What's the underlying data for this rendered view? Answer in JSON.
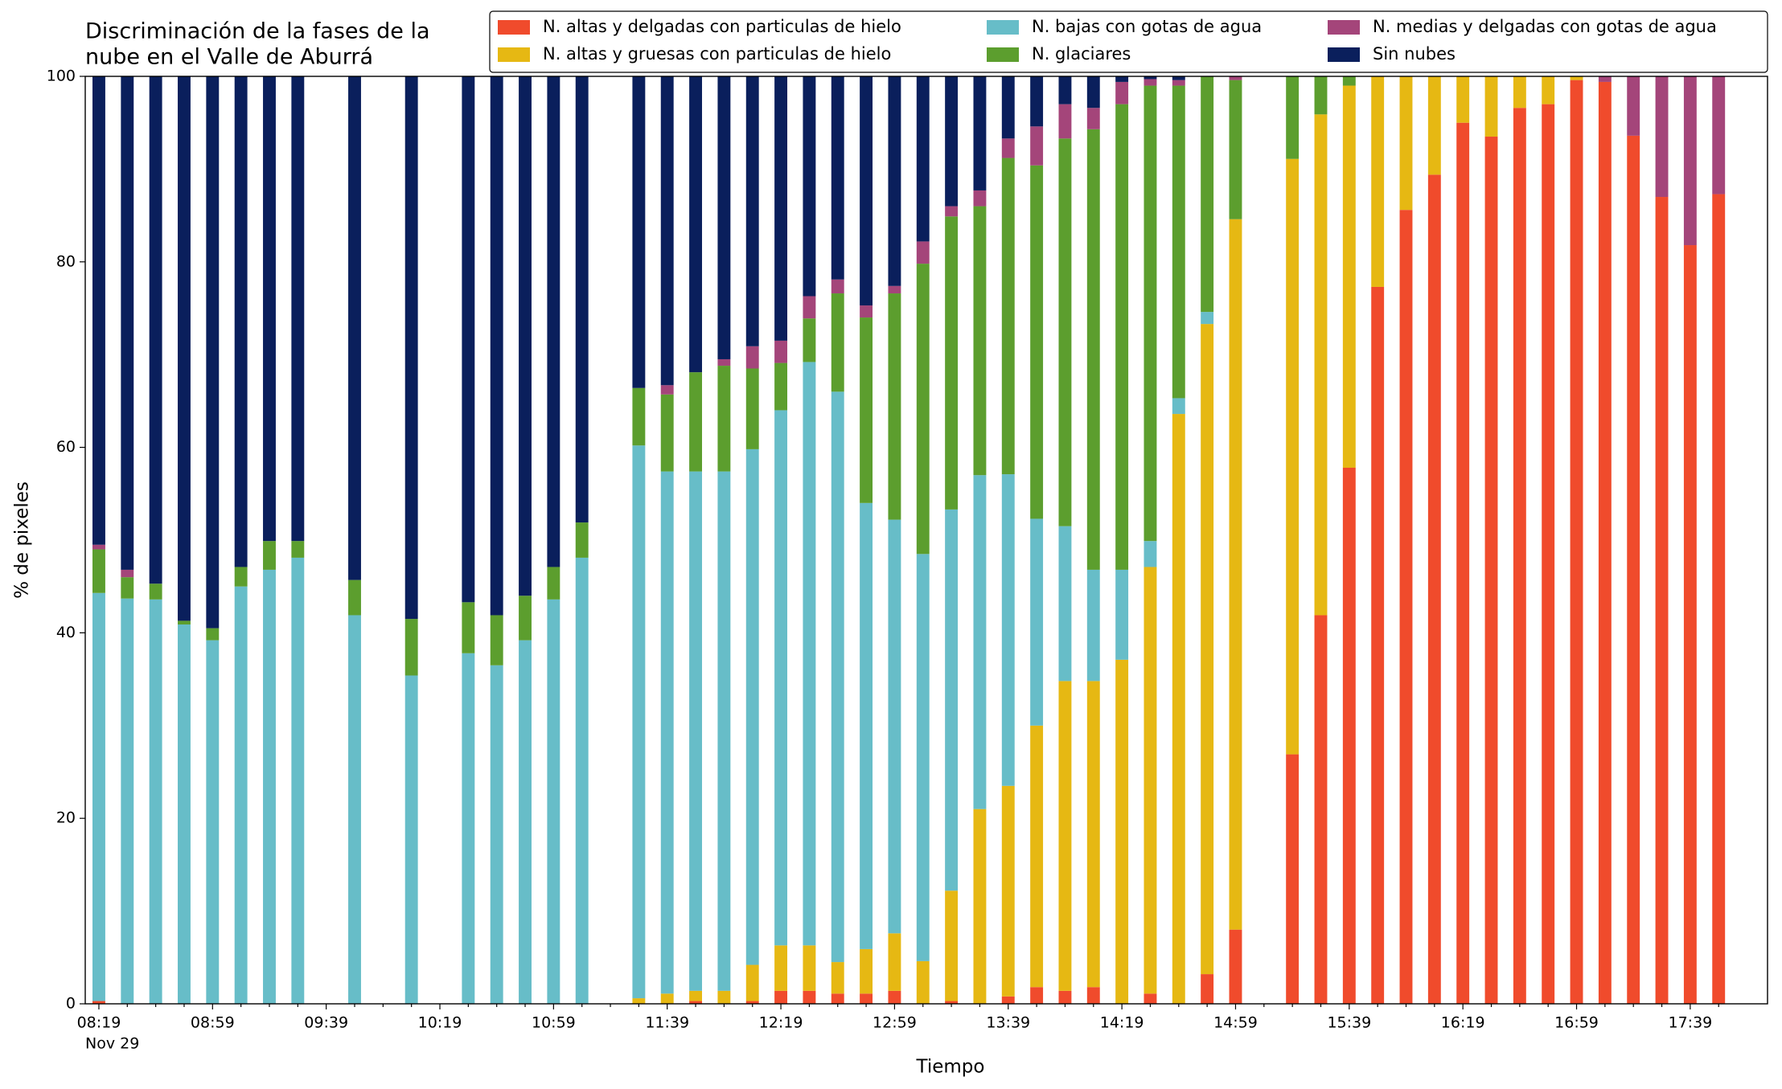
{
  "chart_data": {
    "type": "stacked_bar",
    "title": [
      "Discriminación de la fases de la",
      "nube en el Valle de Aburrá"
    ],
    "xlabel": "Tiempo",
    "ylabel": "% de pixeles",
    "date_label": "Nov 29",
    "categories": [
      "08:19",
      null,
      null,
      null,
      "08:59",
      null,
      null,
      null,
      "09:39",
      null,
      null,
      null,
      "10:19",
      null,
      null,
      null,
      "10:59",
      null,
      null,
      null,
      "11:39",
      null,
      null,
      null,
      "12:19",
      null,
      null,
      null,
      "12:59",
      null,
      null,
      null,
      "13:39",
      null,
      null,
      null,
      "14:19",
      null,
      null,
      null,
      "14:59",
      null,
      null,
      null,
      "15:39",
      null,
      null,
      null,
      "16:19",
      null,
      null,
      null,
      "16:59",
      null,
      null,
      null,
      "17:39",
      null
    ],
    "ylim": [
      0,
      100
    ],
    "yticks": [
      0,
      20,
      40,
      60,
      80,
      100
    ],
    "grid": false,
    "legend": "top-right",
    "series": [
      {
        "name": "N. altas y delgadas con particulas de hielo",
        "color": "#f04b2c",
        "values": [
          0.3,
          0,
          0,
          0,
          0,
          0,
          0,
          0,
          null,
          0,
          null,
          0,
          null,
          0,
          0,
          0,
          0,
          0,
          null,
          0,
          0,
          0.3,
          0,
          0.3,
          1.4,
          1.4,
          1.1,
          1.1,
          1.4,
          0,
          0.3,
          0,
          0.8,
          1.8,
          1.4,
          1.8,
          0,
          1.1,
          0,
          3.2,
          8,
          null,
          26.9,
          41.9,
          57.8,
          77.3,
          85.6,
          89.4,
          95,
          93.5,
          96.6,
          97,
          99.6,
          99.4,
          93.6,
          87,
          81.8,
          87.3
        ]
      },
      {
        "name": "N. altas y gruesas con particulas de hielo",
        "color": "#e6b813",
        "values": [
          0,
          0,
          0,
          0,
          0,
          0,
          0,
          0,
          null,
          0,
          null,
          0,
          null,
          0,
          0,
          0,
          0,
          0,
          null,
          0.6,
          1.1,
          1.1,
          1.4,
          3.9,
          4.9,
          4.9,
          3.4,
          4.8,
          6.2,
          4.6,
          11.9,
          21,
          22.7,
          28.2,
          33.4,
          33,
          37.1,
          46,
          63.6,
          70.1,
          76.6,
          null,
          64.2,
          54,
          41.2,
          22.7,
          14.4,
          10.6,
          5,
          6.5,
          3.4,
          3,
          0.4,
          0,
          0,
          0,
          0,
          0
        ]
      },
      {
        "name": "N. bajas con gotas de agua",
        "color": "#67bdc8",
        "values": [
          44,
          43.7,
          43.6,
          40.9,
          39.2,
          45,
          46.8,
          48.1,
          null,
          41.9,
          null,
          35.4,
          null,
          37.8,
          36.5,
          39.2,
          43.6,
          48.1,
          null,
          59.6,
          56.3,
          56,
          56,
          55.6,
          57.7,
          62.9,
          61.5,
          48.1,
          44.6,
          43.9,
          41.1,
          36,
          33.6,
          22.3,
          16.7,
          12,
          9.7,
          2.8,
          1.7,
          1.3,
          0,
          null,
          0,
          0,
          0,
          0,
          0,
          0,
          0,
          0,
          0,
          0,
          0,
          0,
          0,
          0,
          0,
          0
        ]
      },
      {
        "name": "N. glaciares",
        "color": "#5c9e2e",
        "values": [
          4.7,
          2.3,
          1.7,
          0.4,
          1.3,
          2.1,
          3.1,
          1.8,
          null,
          3.8,
          null,
          6.1,
          null,
          5.5,
          5.4,
          4.8,
          3.5,
          3.8,
          null,
          6.2,
          8.3,
          10.7,
          11.4,
          8.7,
          5.1,
          4.7,
          10.6,
          20,
          24.4,
          31.3,
          31.6,
          29,
          34.1,
          38.1,
          41.8,
          47.5,
          50.2,
          49.1,
          33.7,
          25.4,
          15,
          null,
          8.9,
          4.1,
          1,
          0,
          0,
          0,
          0,
          0,
          0,
          0,
          0,
          0,
          0,
          0,
          0,
          0
        ]
      },
      {
        "name": "N. medias y delgadas con gotas de agua",
        "color": "#a4457a",
        "values": [
          0.5,
          0.8,
          0,
          0,
          0,
          0,
          0,
          0,
          null,
          0,
          null,
          0,
          null,
          0,
          0,
          0,
          0,
          0,
          null,
          0,
          1,
          0,
          0.7,
          2.4,
          2.4,
          2.4,
          1.5,
          1.3,
          0.8,
          2.4,
          1.1,
          1.7,
          2.1,
          4.2,
          3.7,
          2.3,
          2.4,
          0.7,
          0.6,
          0,
          0.4,
          null,
          0,
          0,
          0,
          0,
          0,
          0,
          0,
          0,
          0,
          0,
          0,
          0.6,
          6.4,
          13,
          18.2,
          12.7
        ]
      },
      {
        "name": "Sin nubes",
        "color": "#0a1f5c",
        "values": [
          50.5,
          53.2,
          54.7,
          58.7,
          59.5,
          52.9,
          50.1,
          50.1,
          null,
          54.3,
          null,
          58.5,
          null,
          56.7,
          58.1,
          56,
          52.9,
          48.1,
          null,
          33.6,
          33.3,
          31.9,
          30.5,
          29.1,
          28.5,
          23.7,
          21.9,
          24.7,
          22.6,
          17.8,
          14,
          12.3,
          6.7,
          5.4,
          3,
          3.4,
          0.6,
          0.3,
          0.4,
          0,
          0,
          null,
          0,
          0,
          0,
          0,
          0,
          0,
          0,
          0,
          0,
          0,
          0,
          0,
          0,
          0,
          0,
          0
        ]
      }
    ]
  }
}
